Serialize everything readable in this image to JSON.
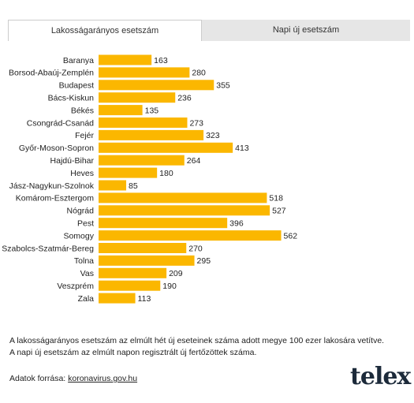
{
  "tabs": [
    "Lakosságarányos esetszám",
    "Napi új esetszám"
  ],
  "chart_data": {
    "type": "bar",
    "orientation": "horizontal",
    "color": "#fbb700",
    "categories": [
      "Baranya",
      "Borsod-Abaúj-Zemplén",
      "Budapest",
      "Bács-Kiskun",
      "Békés",
      "Csongrád-Csanád",
      "Fejér",
      "Győr-Moson-Sopron",
      "Hajdú-Bihar",
      "Heves",
      "Jász-Nagykun-Szolnok",
      "Komárom-Esztergom",
      "Nógrád",
      "Pest",
      "Somogy",
      "Szabolcs-Szatmár-Bereg",
      "Tolna",
      "Vas",
      "Veszprém",
      "Zala"
    ],
    "values": [
      163,
      280,
      355,
      236,
      135,
      273,
      323,
      413,
      264,
      180,
      85,
      518,
      527,
      396,
      562,
      270,
      295,
      209,
      190,
      113
    ]
  },
  "notes": [
    "A lakosságarányos esetszám az elmúlt hét új eseteinek száma adott megye 100 ezer lakosára vetítve.",
    "A napi új esetszám az elmúlt napon regisztrált új fertőzöttek száma."
  ],
  "source": {
    "label": "Adatok forrása:",
    "link": "koronavirus.gov.hu"
  },
  "logo": "telex"
}
